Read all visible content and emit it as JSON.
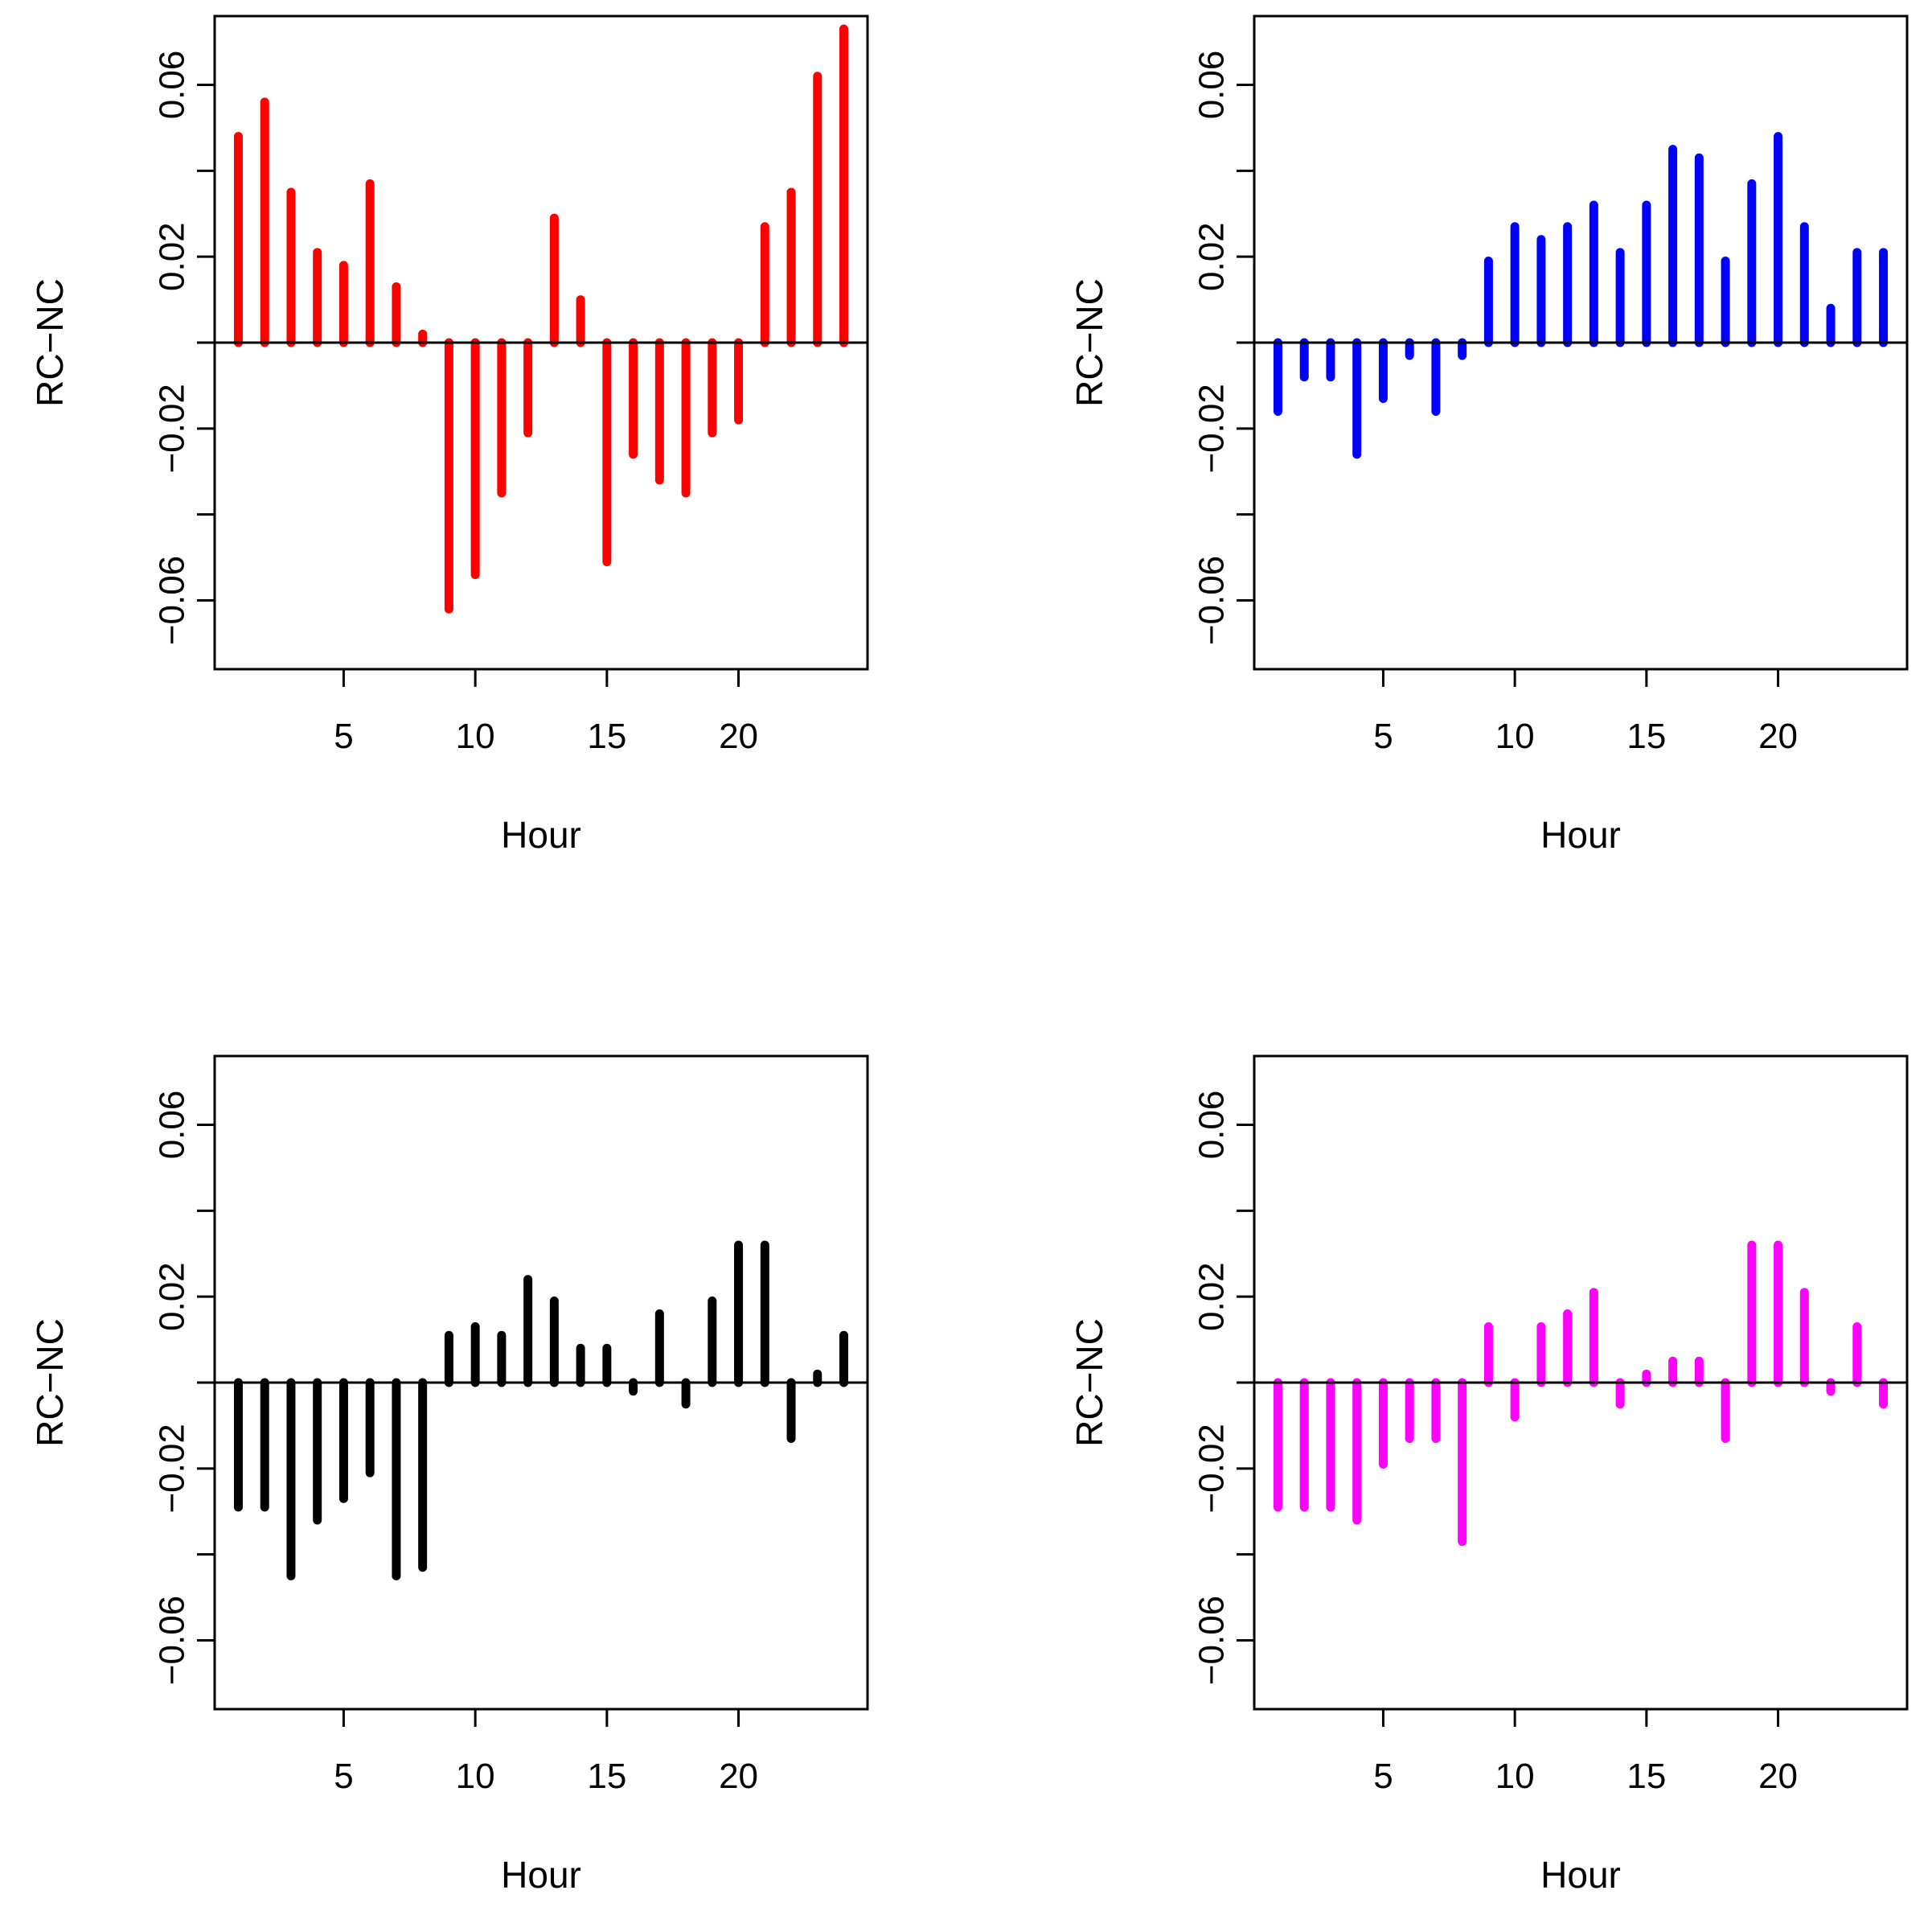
{
  "chart_data": [
    {
      "type": "bar",
      "style": "vertical-lines",
      "color": "#ff0000",
      "xlabel": "Hour",
      "ylabel": "RC−NC",
      "xlim": [
        0.1,
        24.9
      ],
      "ylim": [
        -0.076,
        0.076
      ],
      "x_ticks": [
        5,
        10,
        15,
        20
      ],
      "x_tick_labels": [
        "5",
        "10",
        "15",
        "20"
      ],
      "y_ticks": [
        -0.06,
        -0.04,
        -0.02,
        0,
        0.02,
        0.04,
        0.06
      ],
      "y_tick_labels": [
        "−0.06",
        "",
        "−0.02",
        "",
        "0.02",
        "",
        "0.06"
      ],
      "x": [
        1,
        2,
        3,
        4,
        5,
        6,
        7,
        8,
        9,
        10,
        11,
        12,
        13,
        14,
        15,
        16,
        17,
        18,
        19,
        20,
        21,
        22,
        23,
        24
      ],
      "values": [
        0.048,
        0.056,
        0.035,
        0.021,
        0.018,
        0.037,
        0.013,
        0.002,
        -0.062,
        -0.054,
        -0.035,
        -0.021,
        0.029,
        0.01,
        -0.051,
        -0.026,
        -0.032,
        -0.035,
        -0.021,
        -0.018,
        0.027,
        0.035,
        0.062,
        0.073
      ]
    },
    {
      "type": "bar",
      "style": "vertical-lines",
      "color": "#0000ff",
      "xlabel": "Hour",
      "ylabel": "RC−NC",
      "xlim": [
        0.1,
        24.9
      ],
      "ylim": [
        -0.076,
        0.076
      ],
      "x_ticks": [
        5,
        10,
        15,
        20
      ],
      "x_tick_labels": [
        "5",
        "10",
        "15",
        "20"
      ],
      "y_ticks": [
        -0.06,
        -0.04,
        -0.02,
        0,
        0.02,
        0.04,
        0.06
      ],
      "y_tick_labels": [
        "−0.06",
        "",
        "−0.02",
        "",
        "0.02",
        "",
        "0.06"
      ],
      "x": [
        1,
        2,
        3,
        4,
        5,
        6,
        7,
        8,
        9,
        10,
        11,
        12,
        13,
        14,
        15,
        16,
        17,
        18,
        19,
        20,
        21,
        22,
        23,
        24
      ],
      "values": [
        -0.016,
        -0.008,
        -0.008,
        -0.026,
        -0.013,
        -0.003,
        -0.016,
        -0.003,
        0.019,
        0.027,
        0.024,
        0.027,
        0.032,
        0.021,
        0.032,
        0.045,
        0.043,
        0.019,
        0.037,
        0.048,
        0.027,
        0.008,
        0.021,
        0.021
      ]
    },
    {
      "type": "bar",
      "style": "vertical-lines",
      "color": "#000000",
      "xlabel": "Hour",
      "ylabel": "RC−NC",
      "xlim": [
        0.1,
        24.9
      ],
      "ylim": [
        -0.076,
        0.076
      ],
      "x_ticks": [
        5,
        10,
        15,
        20
      ],
      "x_tick_labels": [
        "5",
        "10",
        "15",
        "20"
      ],
      "y_ticks": [
        -0.06,
        -0.04,
        -0.02,
        0,
        0.02,
        0.04,
        0.06
      ],
      "y_tick_labels": [
        "−0.06",
        "",
        "−0.02",
        "",
        "0.02",
        "",
        "0.06"
      ],
      "x": [
        1,
        2,
        3,
        4,
        5,
        6,
        7,
        8,
        9,
        10,
        11,
        12,
        13,
        14,
        15,
        16,
        17,
        18,
        19,
        20,
        21,
        22,
        23,
        24
      ],
      "values": [
        -0.029,
        -0.029,
        -0.045,
        -0.032,
        -0.027,
        -0.021,
        -0.045,
        -0.043,
        0.011,
        0.013,
        0.011,
        0.024,
        0.019,
        0.008,
        0.008,
        -0.002,
        0.016,
        -0.005,
        0.019,
        0.032,
        0.032,
        -0.013,
        0.002,
        0.011
      ]
    },
    {
      "type": "bar",
      "style": "vertical-lines",
      "color": "#ff00ff",
      "xlabel": "Hour",
      "ylabel": "RC−NC",
      "xlim": [
        0.1,
        24.9
      ],
      "ylim": [
        -0.076,
        0.076
      ],
      "x_ticks": [
        5,
        10,
        15,
        20
      ],
      "x_tick_labels": [
        "5",
        "10",
        "15",
        "20"
      ],
      "y_ticks": [
        -0.06,
        -0.04,
        -0.02,
        0,
        0.02,
        0.04,
        0.06
      ],
      "y_tick_labels": [
        "−0.06",
        "",
        "−0.02",
        "",
        "0.02",
        "",
        "0.06"
      ],
      "x": [
        1,
        2,
        3,
        4,
        5,
        6,
        7,
        8,
        9,
        10,
        11,
        12,
        13,
        14,
        15,
        16,
        17,
        18,
        19,
        20,
        21,
        22,
        23,
        24
      ],
      "values": [
        -0.029,
        -0.029,
        -0.029,
        -0.032,
        -0.019,
        -0.013,
        -0.013,
        -0.037,
        0.013,
        -0.008,
        0.013,
        0.016,
        0.021,
        -0.005,
        0.002,
        0.005,
        0.005,
        -0.013,
        0.032,
        0.032,
        0.021,
        -0.002,
        0.013,
        -0.005
      ]
    }
  ]
}
